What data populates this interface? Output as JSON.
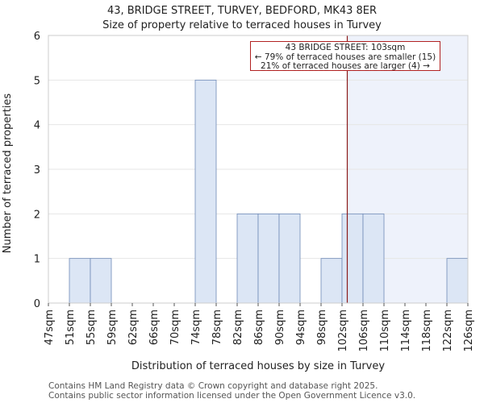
{
  "chart_data": {
    "type": "bar",
    "title": "43, BRIDGE STREET, TURVEY, BEDFORD, MK43 8ER",
    "subtitle": "Size of property relative to terraced houses in Turvey",
    "xlabel": "Distribution of terraced houses by size in Turvey",
    "ylabel": "Number of terraced properties",
    "categories": [
      "47sqm",
      "51sqm",
      "55sqm",
      "59sqm",
      "62sqm",
      "66sqm",
      "70sqm",
      "74sqm",
      "78sqm",
      "82sqm",
      "86sqm",
      "90sqm",
      "94sqm",
      "98sqm",
      "102sqm",
      "106sqm",
      "110sqm",
      "114sqm",
      "118sqm",
      "122sqm",
      "126sqm"
    ],
    "bins": [
      {
        "start": 47,
        "value": 0
      },
      {
        "start": 51,
        "value": 1
      },
      {
        "start": 55,
        "value": 1
      },
      {
        "start": 59,
        "value": 0
      },
      {
        "start": 62,
        "value": 0
      },
      {
        "start": 66,
        "value": 0
      },
      {
        "start": 70,
        "value": 0
      },
      {
        "start": 74,
        "value": 5
      },
      {
        "start": 78,
        "value": 0
      },
      {
        "start": 82,
        "value": 2
      },
      {
        "start": 86,
        "value": 2
      },
      {
        "start": 90,
        "value": 2
      },
      {
        "start": 94,
        "value": 0
      },
      {
        "start": 98,
        "value": 1
      },
      {
        "start": 102,
        "value": 2
      },
      {
        "start": 106,
        "value": 2
      },
      {
        "start": 110,
        "value": 0
      },
      {
        "start": 114,
        "value": 0
      },
      {
        "start": 118,
        "value": 0
      },
      {
        "start": 122,
        "value": 1
      }
    ],
    "yticks": [
      0,
      1,
      2,
      3,
      4,
      5,
      6
    ],
    "ylim": [
      0,
      6
    ],
    "marker": {
      "value": 103,
      "unit": "sqm"
    },
    "annotation": {
      "line1": "43 BRIDGE STREET: 103sqm",
      "line2": "← 79% of terraced houses are smaller (15)",
      "line3": "21% of terraced houses are larger (4) →"
    },
    "colors": {
      "bar_fill": "#dce6f5",
      "bar_edge": "#6f8ab7",
      "marker_line": "#8b1a1a",
      "highlight_bg": "#eef2fb",
      "grid": "#e6e6e6"
    }
  },
  "footer": {
    "line1": "Contains HM Land Registry data © Crown copyright and database right 2025.",
    "line2": "Contains public sector information licensed under the Open Government Licence v3.0."
  }
}
